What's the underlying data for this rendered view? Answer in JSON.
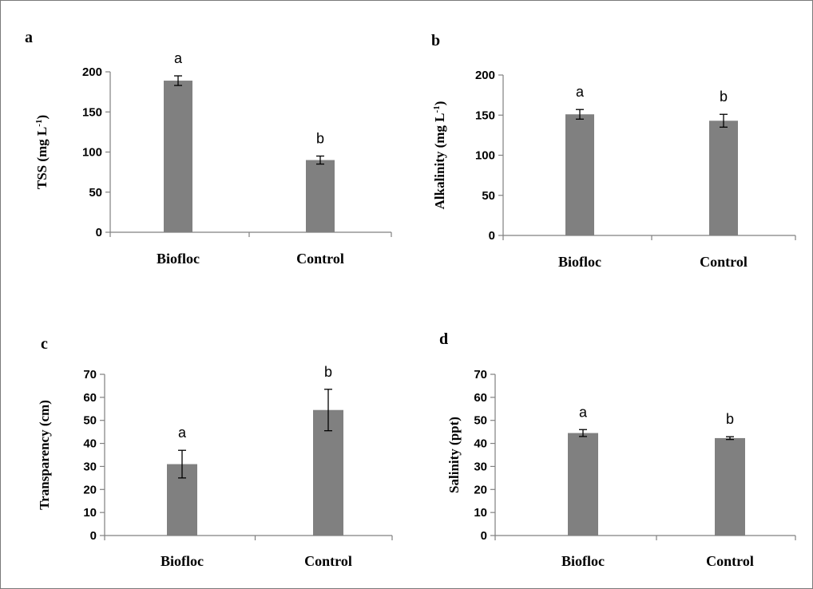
{
  "chart_data": [
    {
      "panel": "a",
      "type": "bar",
      "categories": [
        "Biofloc",
        "Control"
      ],
      "values": [
        189,
        90
      ],
      "errors": [
        6,
        5
      ],
      "significance": [
        "a",
        "b"
      ],
      "ylabel": "TSS (mg L",
      "ylabel_sup": "-1",
      "ylabel_tail": ")",
      "ylim": [
        0,
        200
      ],
      "yticks": [
        0,
        50,
        100,
        150,
        200
      ],
      "color": "#808080"
    },
    {
      "panel": "b",
      "type": "bar",
      "categories": [
        "Biofloc",
        "Control"
      ],
      "values": [
        151,
        143
      ],
      "errors": [
        6,
        8
      ],
      "significance": [
        "a",
        "b"
      ],
      "ylabel": "Alkalinity (mg L",
      "ylabel_sup": "-1",
      "ylabel_tail": ")",
      "ylim": [
        0,
        200
      ],
      "yticks": [
        0,
        50,
        100,
        150,
        200
      ],
      "color": "#808080"
    },
    {
      "panel": "c",
      "type": "bar",
      "categories": [
        "Biofloc",
        "Control"
      ],
      "values": [
        31,
        54.5
      ],
      "errors": [
        6,
        9
      ],
      "significance": [
        "a",
        "b"
      ],
      "ylabel": "Transparency (cm)",
      "ylabel_sup": "",
      "ylabel_tail": "",
      "ylim": [
        0,
        70
      ],
      "yticks": [
        0,
        10,
        20,
        30,
        40,
        50,
        60,
        70
      ],
      "color": "#808080"
    },
    {
      "panel": "d",
      "type": "bar",
      "categories": [
        "Biofloc",
        "Control"
      ],
      "values": [
        44.5,
        42.3
      ],
      "errors": [
        1.5,
        0.6
      ],
      "significance": [
        "a",
        "b"
      ],
      "ylabel": "Salinity (ppt)",
      "ylabel_sup": "",
      "ylabel_tail": "",
      "ylim": [
        0,
        70
      ],
      "yticks": [
        0,
        10,
        20,
        30,
        40,
        50,
        60,
        70
      ],
      "color": "#808080"
    }
  ]
}
